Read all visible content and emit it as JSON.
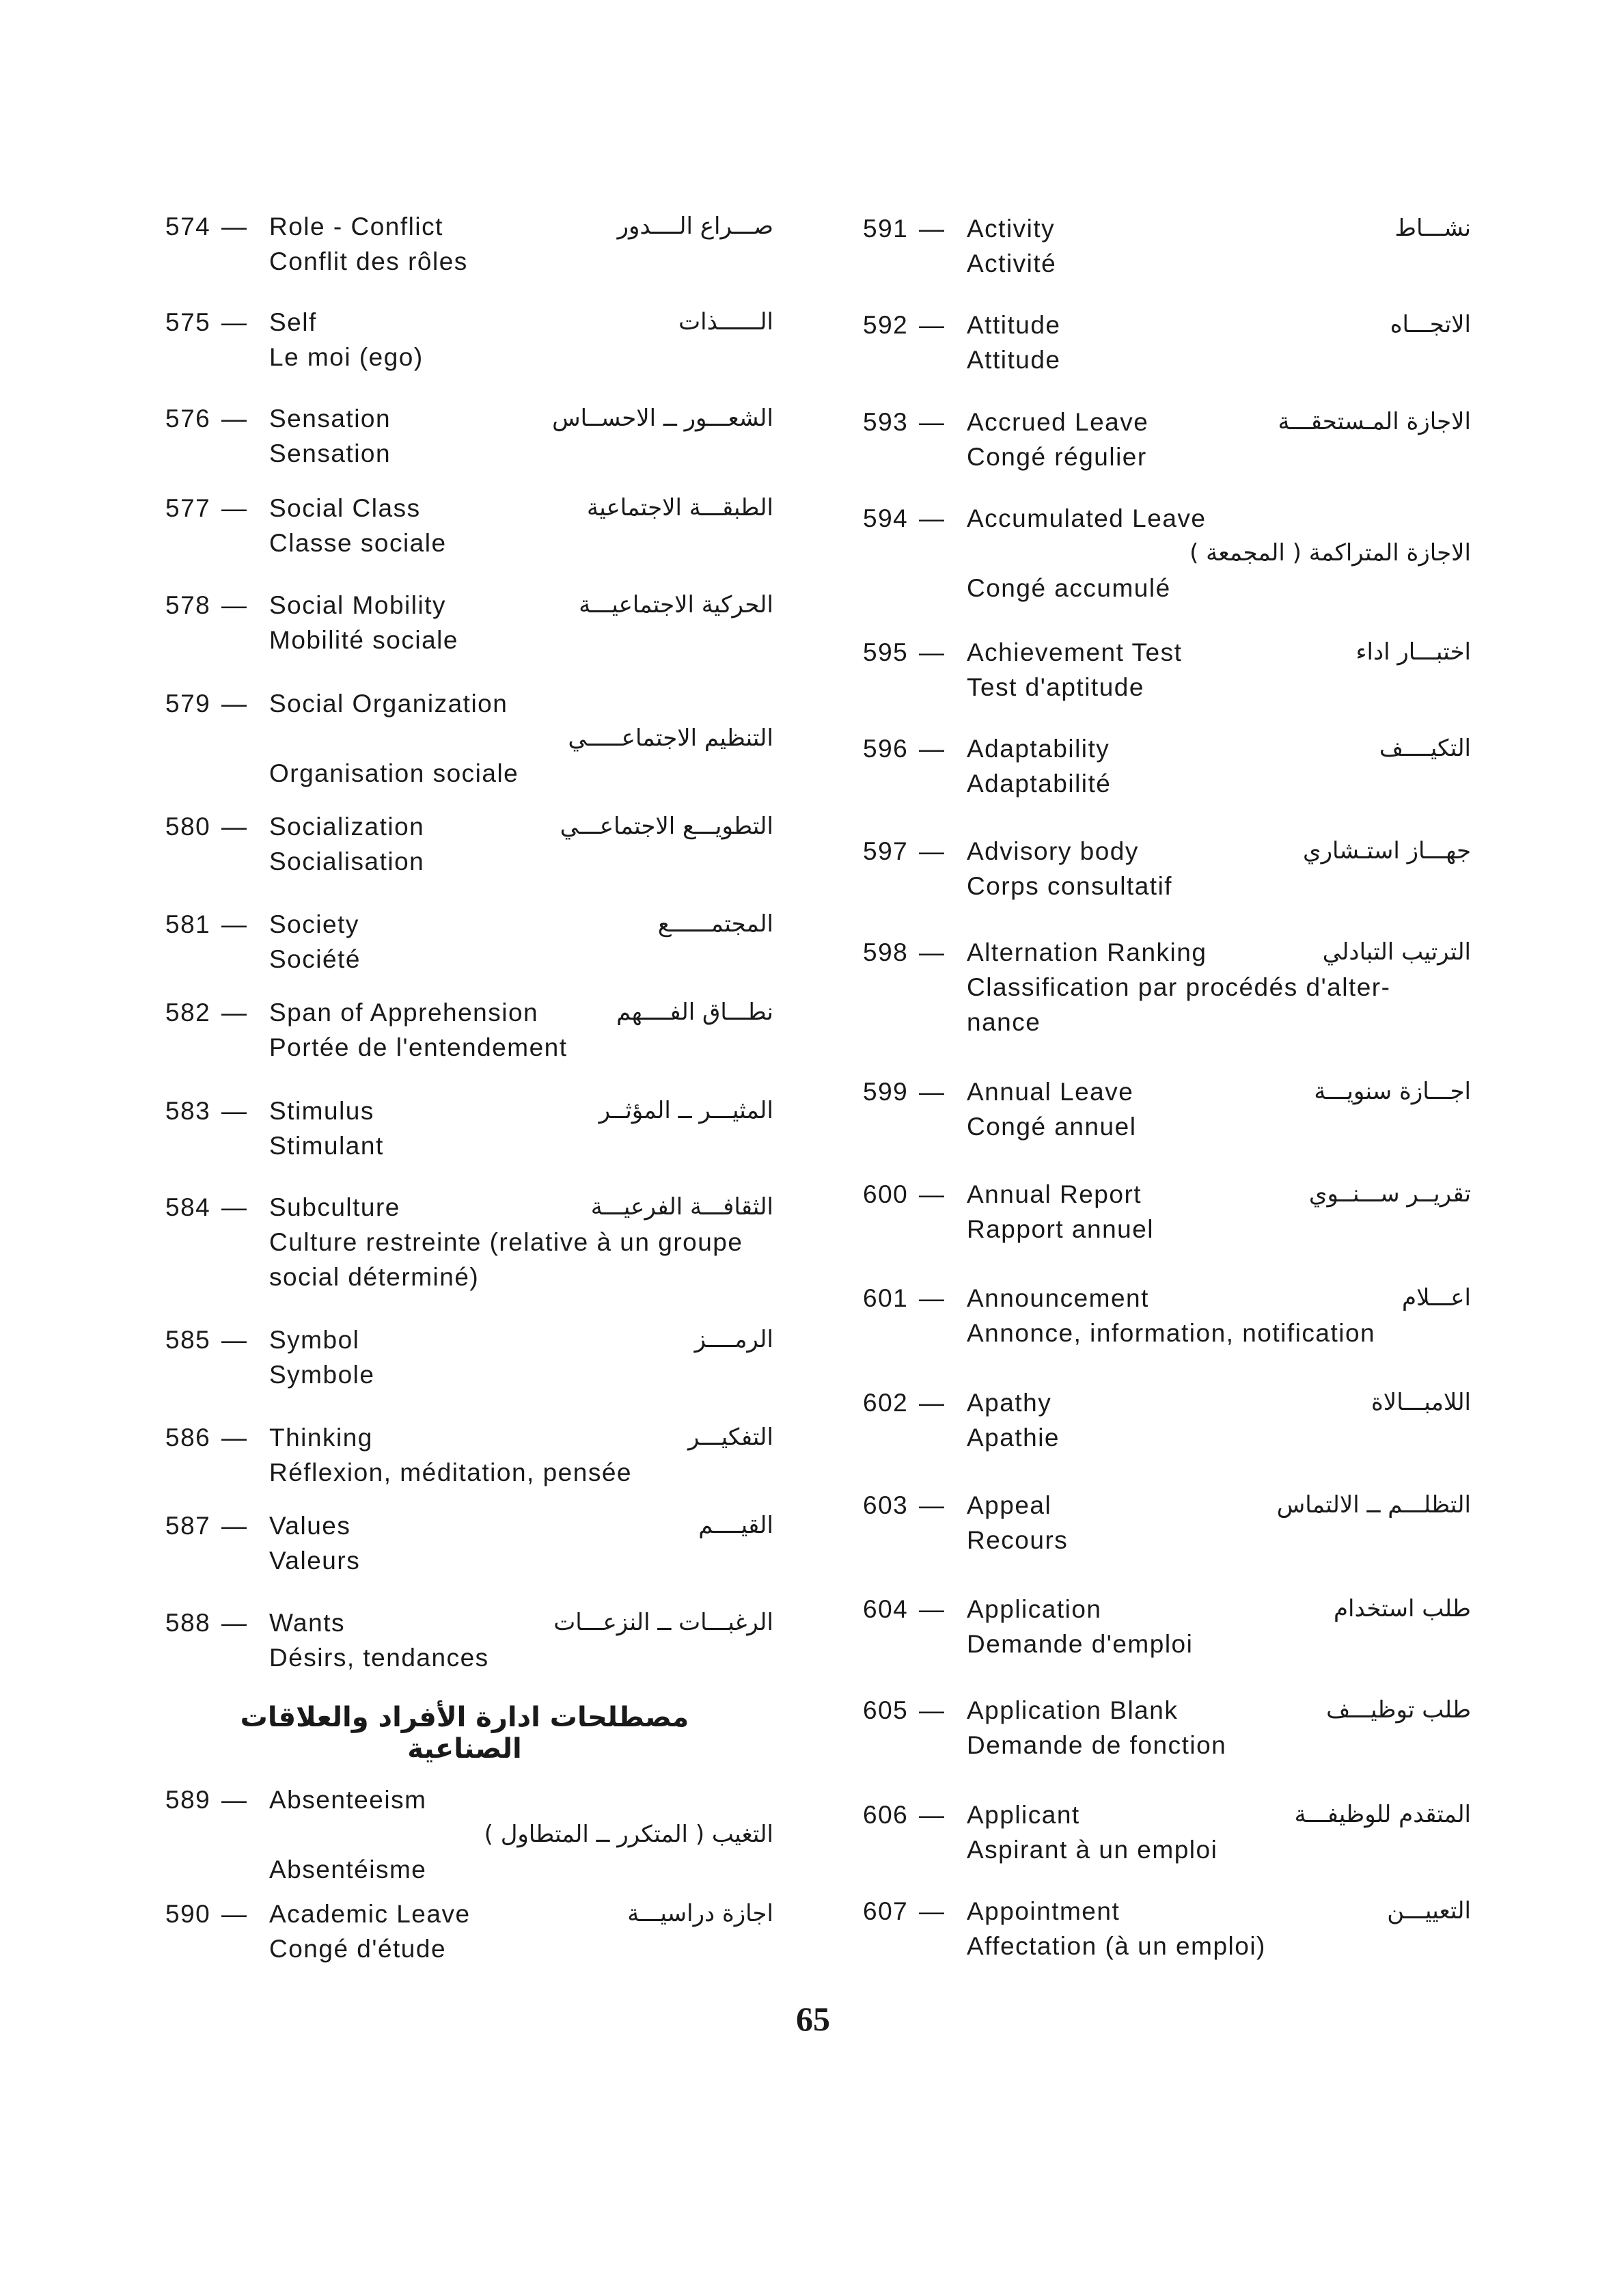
{
  "left_entries": [
    {
      "num": "574",
      "lines": [
        {
          "en": "Role - Conflict",
          "ar": "صـــراع الــــدور"
        },
        {
          "en": "Conflit des rôles"
        }
      ]
    },
    {
      "num": "575",
      "lines": [
        {
          "en": "Self",
          "ar": "الــــــذات"
        },
        {
          "en": "Le moi (ego)"
        }
      ]
    },
    {
      "num": "576",
      "lines": [
        {
          "en": "Sensation",
          "ar": "الشعـــور ــ الاحســاس"
        },
        {
          "en": "Sensation"
        }
      ]
    },
    {
      "num": "577",
      "lines": [
        {
          "en": "Social Class",
          "ar": "الطبقـــة الاجتماعية"
        },
        {
          "en": "Classe sociale"
        }
      ]
    },
    {
      "num": "578",
      "lines": [
        {
          "en": "Social Mobility",
          "ar": "الحركية الاجتماعيـــة"
        },
        {
          "en": "Mobilité sociale"
        }
      ]
    },
    {
      "num": "579",
      "lines": [
        {
          "en": "Social Organization"
        },
        {
          "ar": "التنظيم الاجتماعـــــي"
        },
        {
          "en": "Organisation sociale"
        }
      ]
    },
    {
      "num": "580",
      "lines": [
        {
          "en": "Socialization",
          "ar": "التطويـــع الاجتماعـــي"
        },
        {
          "en": "Socialisation"
        }
      ]
    },
    {
      "num": "581",
      "lines": [
        {
          "en": "Society",
          "ar": "المجتمــــــع"
        },
        {
          "en": "Société"
        }
      ]
    },
    {
      "num": "582",
      "lines": [
        {
          "en": "Span of Apprehension",
          "ar": "نطـــاق الفــــهم"
        },
        {
          "en": "Portée de l'entendement"
        }
      ]
    },
    {
      "num": "583",
      "lines": [
        {
          "en": "Stimulus",
          "ar": "المثيـــر ــ المؤثــر"
        },
        {
          "en": "Stimulant"
        }
      ]
    },
    {
      "num": "584",
      "lines": [
        {
          "en": "Subculture",
          "ar": "الثقافـــة الفرعيـــة"
        },
        {
          "en": "Culture restreinte (relative à un groupe"
        },
        {
          "en": "social déterminé)"
        }
      ]
    },
    {
      "num": "585",
      "lines": [
        {
          "en": "Symbol",
          "ar": "الرمــــز"
        },
        {
          "en": "Symbole"
        }
      ]
    },
    {
      "num": "586",
      "lines": [
        {
          "en": "Thinking",
          "ar": "التفكيـــر"
        },
        {
          "en": "Réflexion, méditation, pensée"
        }
      ]
    },
    {
      "num": "587",
      "lines": [
        {
          "en": "Values",
          "ar": "القيــــم"
        },
        {
          "en": "Valeurs"
        }
      ]
    },
    {
      "num": "588",
      "lines": [
        {
          "en": "Wants",
          "ar": "الرغبـــات ــ النزعـــات"
        },
        {
          "en": "Désirs, tendances"
        }
      ]
    },
    {
      "num": "589",
      "lines": [
        {
          "en": "Absenteeism"
        },
        {
          "ar": "التغيب ( المتكرر ــ المتطاول )"
        },
        {
          "en": "Absentéisme"
        }
      ]
    },
    {
      "num": "590",
      "lines": [
        {
          "en": "Academic Leave",
          "ar": "اجازة دراسيـــة"
        },
        {
          "en": "Congé d'étude"
        }
      ]
    }
  ],
  "section_heading": "مصطلحات ادارة الأفراد والعلاقات الصناعية",
  "right_entries": [
    {
      "num": "591",
      "lines": [
        {
          "en": "Activity",
          "ar": "نشـــاط"
        },
        {
          "en": "Activité"
        }
      ]
    },
    {
      "num": "592",
      "lines": [
        {
          "en": "Attitude",
          "ar": "الاتجـــاه"
        },
        {
          "en": "Attitude"
        }
      ]
    },
    {
      "num": "593",
      "lines": [
        {
          "en": "Accrued Leave",
          "ar": "الاجازة المـستحقـــة"
        },
        {
          "en": "Congé régulier"
        }
      ]
    },
    {
      "num": "594",
      "lines": [
        {
          "en": "Accumulated Leave"
        },
        {
          "ar": "الاجازة المتراكمة ( المجمعة )"
        },
        {
          "en": "Congé accumulé"
        }
      ]
    },
    {
      "num": "595",
      "lines": [
        {
          "en": "Achievement Test",
          "ar": "اختبـــار اداء"
        },
        {
          "en": "Test d'aptitude"
        }
      ]
    },
    {
      "num": "596",
      "lines": [
        {
          "en": "Adaptability",
          "ar": "التكيــــف"
        },
        {
          "en": "Adaptabilité"
        }
      ]
    },
    {
      "num": "597",
      "lines": [
        {
          "en": "Advisory body",
          "ar": "جهـــاز استـشاري"
        },
        {
          "en": "Corps consultatif"
        }
      ]
    },
    {
      "num": "598",
      "lines": [
        {
          "en": "Alternation Ranking",
          "ar": "الترتيب التبادلي"
        },
        {
          "en": "Classification par procédés d'alter-"
        },
        {
          "en": "nance"
        }
      ]
    },
    {
      "num": "599",
      "lines": [
        {
          "en": "Annual Leave",
          "ar": "اجـــازة سنويـــة"
        },
        {
          "en": "Congé annuel"
        }
      ]
    },
    {
      "num": "600",
      "lines": [
        {
          "en": "Annual Report",
          "ar": "تقريــر ســـنــوي"
        },
        {
          "en": "Rapport annuel"
        }
      ]
    },
    {
      "num": "601",
      "lines": [
        {
          "en": "Announcement",
          "ar": "اعـــلام"
        },
        {
          "en": "Annonce, information, notification"
        }
      ]
    },
    {
      "num": "602",
      "lines": [
        {
          "en": "Apathy",
          "ar": "اللامبـــالاة"
        },
        {
          "en": "Apathie"
        }
      ]
    },
    {
      "num": "603",
      "lines": [
        {
          "en": "Appeal",
          "ar": "التظلـــم ــ الالتماس"
        },
        {
          "en": "Recours"
        }
      ]
    },
    {
      "num": "604",
      "lines": [
        {
          "en": "Application",
          "ar": "طلب استخدام"
        },
        {
          "en": "Demande d'emploi"
        }
      ]
    },
    {
      "num": "605",
      "lines": [
        {
          "en": "Application Blank",
          "ar": "طلب توظيـــف"
        },
        {
          "en": "Demande de fonction"
        }
      ]
    },
    {
      "num": "606",
      "lines": [
        {
          "en": "Applicant",
          "ar": "المتقدم للوظيفـــة"
        },
        {
          "en": "Aspirant à un emploi"
        }
      ]
    },
    {
      "num": "607",
      "lines": [
        {
          "en": "Appointment",
          "ar": "التعييـــن"
        },
        {
          "en": "Affectation (à un emploi)"
        }
      ]
    }
  ],
  "dash": "—",
  "page_number": "65"
}
